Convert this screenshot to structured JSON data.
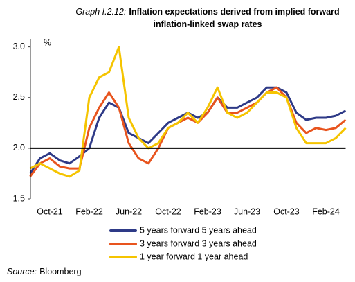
{
  "chart_data": {
    "type": "line",
    "title_prefix": "Graph I.2.12:",
    "title": "Inflation expectations derived from implied forward inflation-linked swap rates",
    "y_label": "%",
    "source_label": "Source:",
    "source": "Bloomberg",
    "categories": [
      null,
      null,
      "Oct-21",
      null,
      null,
      null,
      "Feb-22",
      null,
      null,
      null,
      "Jun-22",
      null,
      null,
      null,
      "Oct-22",
      null,
      null,
      null,
      "Feb-23",
      null,
      null,
      null,
      "Jun-23",
      null,
      null,
      null,
      "Oct-23",
      null,
      null,
      null,
      "Feb-24",
      null,
      null
    ],
    "series": [
      {
        "name": "5 years forward 5 years ahead",
        "color": "#2e3a87",
        "values": [
          1.75,
          1.9,
          1.95,
          1.88,
          1.85,
          1.92,
          2.0,
          2.3,
          2.45,
          2.4,
          2.15,
          2.1,
          2.05,
          2.15,
          2.25,
          2.3,
          2.35,
          2.3,
          2.35,
          2.5,
          2.4,
          2.4,
          2.45,
          2.5,
          2.6,
          2.6,
          2.55,
          2.35,
          2.28,
          2.3,
          2.3,
          2.32,
          2.37
        ]
      },
      {
        "name": "3 years forward 3 years ahead",
        "color": "#e8541e",
        "values": [
          1.72,
          1.85,
          1.9,
          1.82,
          1.8,
          1.8,
          2.2,
          2.4,
          2.55,
          2.4,
          2.05,
          1.9,
          1.85,
          2.0,
          2.2,
          2.25,
          2.3,
          2.25,
          2.35,
          2.5,
          2.35,
          2.35,
          2.4,
          2.45,
          2.55,
          2.6,
          2.5,
          2.25,
          2.15,
          2.2,
          2.18,
          2.2,
          2.28
        ]
      },
      {
        "name": "1 year forward 1 year ahead",
        "color": "#f5c400",
        "values": [
          1.8,
          1.85,
          1.8,
          1.75,
          1.72,
          1.78,
          2.5,
          2.7,
          2.75,
          3.0,
          2.3,
          2.1,
          2.0,
          2.05,
          2.2,
          2.25,
          2.35,
          2.25,
          2.4,
          2.6,
          2.35,
          2.3,
          2.35,
          2.45,
          2.55,
          2.55,
          2.5,
          2.2,
          2.05,
          2.05,
          2.05,
          2.1,
          2.2
        ]
      }
    ],
    "ylim": [
      1.5,
      3.08
    ],
    "yticks": [
      1.5,
      {
        "value": 2,
        "label": "2.0"
      },
      2.5,
      {
        "value": 3,
        "label": "3.0"
      }
    ],
    "reference_line": 2,
    "reference_color": "#000000",
    "grid": false
  }
}
